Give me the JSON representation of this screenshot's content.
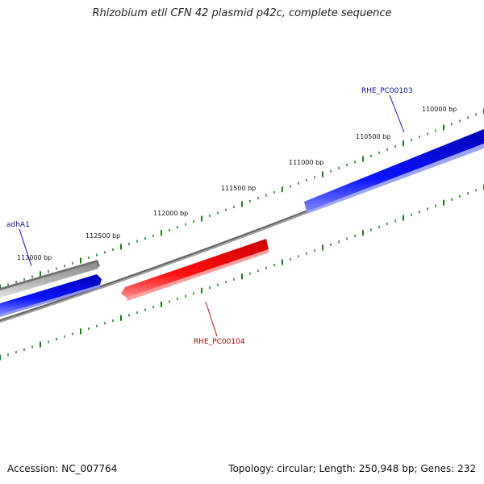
{
  "title": "Rhizobium etli CFN 42 plasmid p42c, complete sequence",
  "footer": {
    "accession": "Accession: NC_007764",
    "summary": "Topology: circular; Length: 250,948 bp; Genes: 232"
  },
  "scale": {
    "tick_labels": [
      "110000 bp",
      "110500 bp",
      "111000 bp",
      "111500 bp",
      "112000 bp",
      "112500 bp",
      "113000 bp"
    ]
  },
  "genes": [
    {
      "name": "RHE_PC00103",
      "strand": "forward",
      "color": "#0000cc"
    },
    {
      "name": "adhA1",
      "strand": "forward",
      "color": "#0000cc"
    },
    {
      "name": "RHE_PC00104",
      "strand": "reverse",
      "color": "#cc0000"
    }
  ],
  "colors": {
    "backbone": "#777777",
    "ticks": "#1a7a1a",
    "forward_gene": "#0000cc",
    "reverse_gene": "#cc0000",
    "grey_feature": "#aaaaaa"
  }
}
